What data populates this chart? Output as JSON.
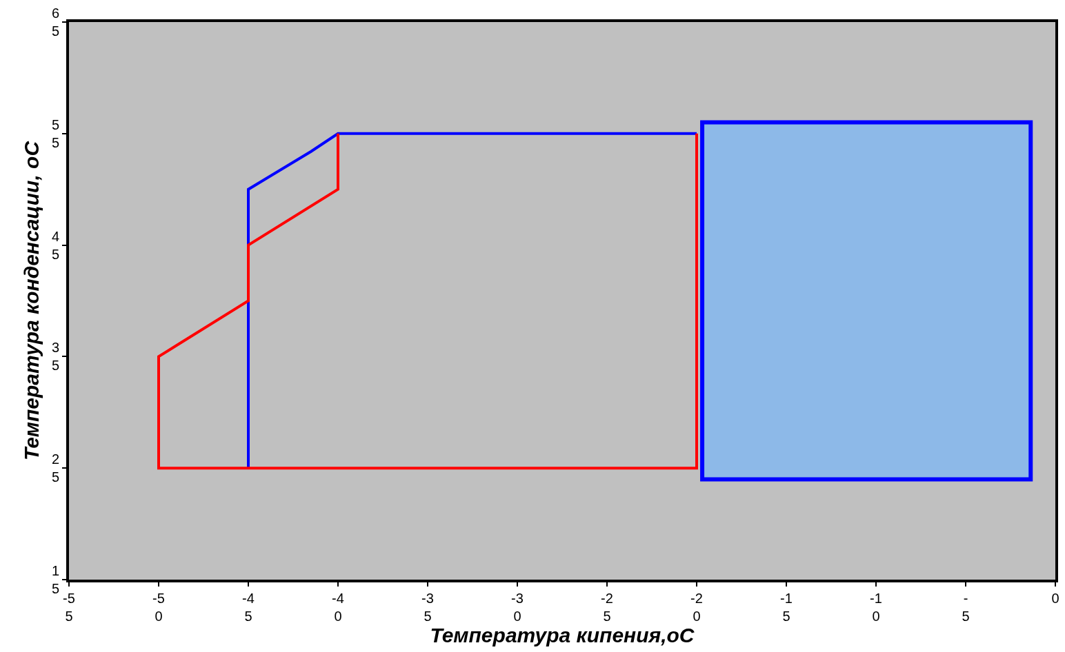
{
  "chart_data": {
    "type": "line",
    "xlabel": "Температура кипения,oC",
    "ylabel": "Температура конденсации, oC",
    "series": [
      {
        "color": "#0000ff",
        "x": [
          -45,
          -45,
          -41.5,
          -40,
          -20
        ],
        "values": [
          25,
          50,
          53.4,
          55,
          55
        ]
      },
      {
        "color": "#ff0000",
        "x": [
          -40,
          -40,
          -45,
          -45,
          -50,
          -50,
          -20,
          -20
        ],
        "values": [
          55,
          50,
          45,
          40,
          35,
          25,
          25,
          55
        ]
      }
    ],
    "xlim": [
      -55,
      0
    ],
    "xticks": [
      -55,
      -50,
      -45,
      -40,
      -35,
      -30,
      -25,
      -20,
      -15,
      -10,
      -5,
      0
    ],
    "ylim": [
      15,
      65
    ],
    "yticks": [
      15,
      25,
      35,
      45,
      55,
      65
    ],
    "grid": false,
    "marker": "none",
    "line_style": "solid"
  }
}
